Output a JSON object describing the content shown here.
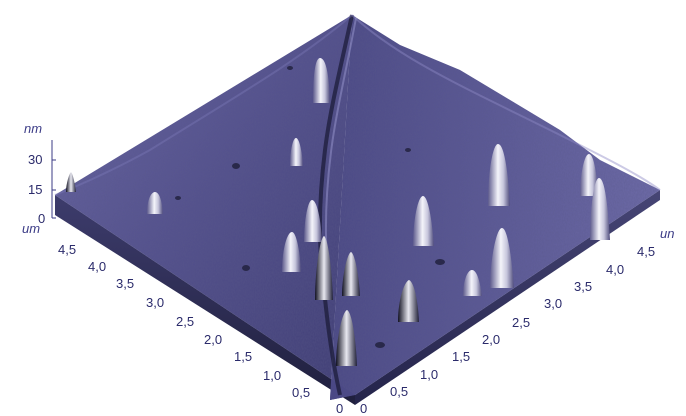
{
  "figure": {
    "colors": {
      "surface_fill": "#55528f",
      "surface_light": "#8c89c4",
      "surface_dark": "#252552",
      "side_wall": "#2e2d55",
      "peak_highlight": "#ffffff",
      "axis_text": "#2b2b6b"
    },
    "z_axis": {
      "unit": "nm",
      "ticks": [
        "30",
        "15",
        "0"
      ]
    },
    "left_axis": {
      "unit": "um",
      "ticks": [
        "4,5",
        "4,0",
        "3,5",
        "3,0",
        "2,5",
        "2,0",
        "1,5",
        "1,0",
        "0,5",
        "0"
      ]
    },
    "right_axis": {
      "unit": "un",
      "ticks": [
        "0",
        "0,5",
        "1,0",
        "1,5",
        "2,0",
        "2,5",
        "3,0",
        "3,5",
        "4,0",
        "4,5"
      ]
    }
  }
}
